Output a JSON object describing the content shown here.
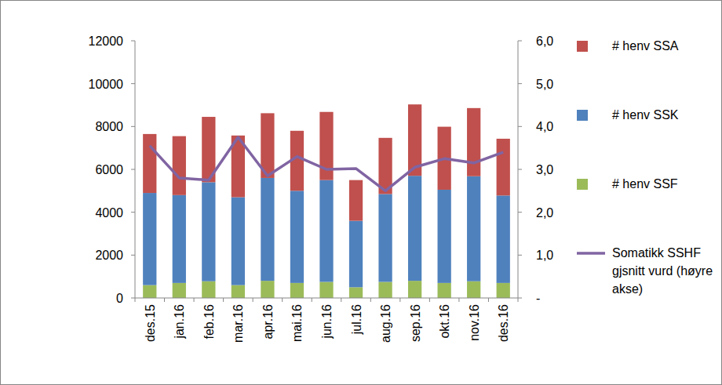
{
  "chart_data": {
    "type": "bar",
    "stacked": true,
    "legend": "right",
    "categories": [
      "des.15",
      "jan.16",
      "feb.16",
      "mar.16",
      "apr.16",
      "mai.16",
      "jun.16",
      "jul.16",
      "aug.16",
      "sep.16",
      "okt.16",
      "nov.16",
      "des.16"
    ],
    "series": [
      {
        "name": "# henv SSF",
        "color": "#9bbb59",
        "values": [
          600,
          700,
          780,
          600,
          800,
          700,
          750,
          500,
          750,
          800,
          700,
          780,
          700
        ]
      },
      {
        "name": "# henv SSK",
        "color": "#4f81bd",
        "values": [
          4300,
          4100,
          4620,
          4100,
          4800,
          4300,
          4750,
          3100,
          4100,
          4900,
          4350,
          4900,
          4080
        ]
      },
      {
        "name": "# henv SSA",
        "color": "#c0504d",
        "values": [
          2750,
          2750,
          3050,
          2880,
          3020,
          2800,
          3180,
          1900,
          2620,
          3330,
          2940,
          3180,
          2650
        ]
      },
      {
        "name": "Somatikk SSHF gjsnitt vurd (høyre akse)",
        "type": "line",
        "axis": "y2",
        "color": "#8064a2",
        "marker": "none",
        "values": [
          3.55,
          2.8,
          2.75,
          3.75,
          2.85,
          3.3,
          3.0,
          3.02,
          2.5,
          3.05,
          3.25,
          3.15,
          3.4
        ]
      }
    ],
    "ylim": [
      0,
      12000
    ],
    "yticks": [
      0,
      2000,
      4000,
      6000,
      8000,
      10000,
      12000
    ],
    "y2lim": [
      0,
      6
    ],
    "y2ticks": [
      {
        "value": 0,
        "label": "-"
      },
      {
        "value": 1,
        "label": "1,0"
      },
      {
        "value": 2,
        "label": "2,0"
      },
      {
        "value": 3,
        "label": "3,0"
      },
      {
        "value": 4,
        "label": "4,0"
      },
      {
        "value": 5,
        "label": "5,0"
      },
      {
        "value": 6,
        "label": "6,0"
      }
    ],
    "grid": false
  }
}
